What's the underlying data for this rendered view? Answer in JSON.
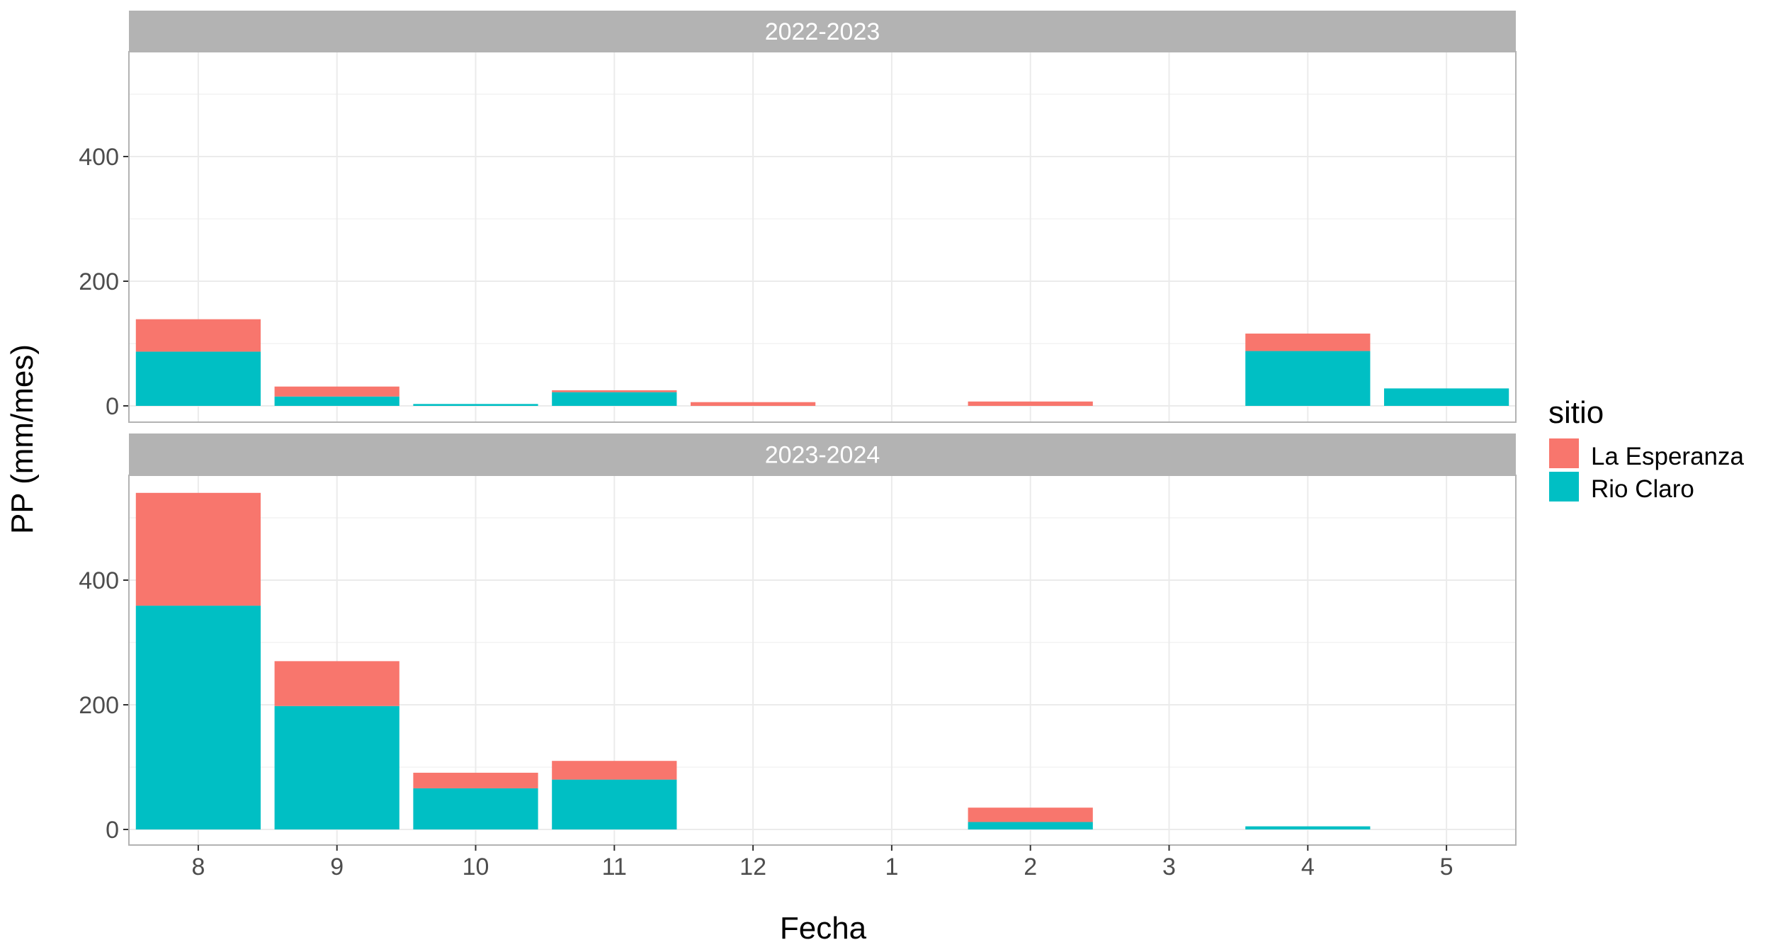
{
  "chart_data": {
    "type": "bar",
    "stacked": true,
    "xlabel": "Fecha",
    "ylabel": "PP (mm/mes)",
    "categories": [
      "8",
      "9",
      "10",
      "11",
      "12",
      "1",
      "2",
      "3",
      "4",
      "5"
    ],
    "y_ticks": [
      "0",
      "200",
      "400"
    ],
    "ylim": [
      0,
      545
    ],
    "grid": true,
    "legend": {
      "title": "sitio",
      "position": "right",
      "entries": [
        {
          "name": "La Esperanza",
          "color": "#F8766D"
        },
        {
          "name": "Rio Claro",
          "color": "#00BFC4"
        }
      ]
    },
    "panels": [
      {
        "label": "2022-2023",
        "series": [
          {
            "name": "Rio Claro",
            "color": "#00BFC4",
            "values": [
              87,
              15,
              3,
              22,
              0,
              0,
              0,
              0,
              88,
              28
            ]
          },
          {
            "name": "La Esperanza",
            "color": "#F8766D",
            "values": [
              52,
              16,
              0,
              3,
              6,
              0,
              7,
              0,
              28,
              0
            ]
          }
        ]
      },
      {
        "label": "2023-2024",
        "series": [
          {
            "name": "Rio Claro",
            "color": "#00BFC4",
            "values": [
              359,
              198,
              66,
              80,
              0,
              0,
              12,
              0,
              5,
              0
            ]
          },
          {
            "name": "La Esperanza",
            "color": "#F8766D",
            "values": [
              181,
              72,
              25,
              30,
              0,
              0,
              23,
              0,
              0,
              0
            ]
          }
        ]
      }
    ]
  }
}
